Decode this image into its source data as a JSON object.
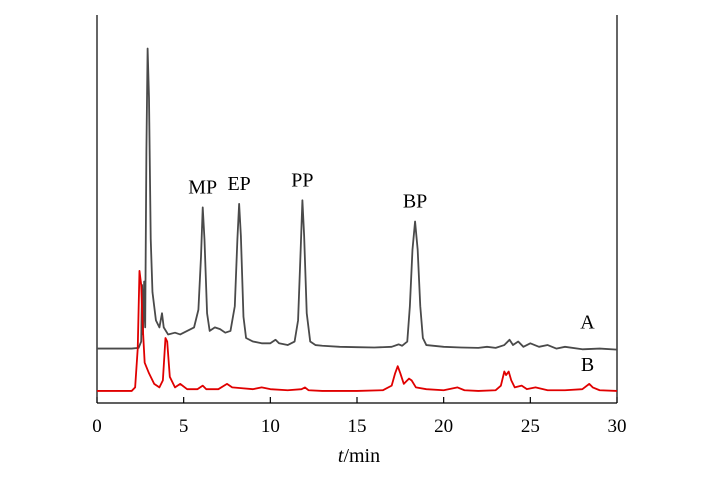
{
  "chart_data": {
    "type": "line",
    "title": "",
    "xlabel": {
      "italic": "t",
      "rest": "/min"
    },
    "ylabel": "",
    "xlim": [
      0,
      30
    ],
    "xticks": [
      0,
      5,
      10,
      15,
      20,
      25,
      30
    ],
    "xtick_labels": [
      "0",
      "5",
      "10",
      "15",
      "20",
      "25",
      "30"
    ],
    "grid": false,
    "series": [
      {
        "name": "A",
        "color": "#4a4a4a",
        "baseline": 0.14,
        "points": [
          [
            0,
            0.14
          ],
          [
            2.0,
            0.14
          ],
          [
            2.4,
            0.142
          ],
          [
            2.55,
            0.16
          ],
          [
            2.6,
            0.32
          ],
          [
            2.65,
            0.18
          ],
          [
            2.72,
            0.33
          ],
          [
            2.78,
            0.2
          ],
          [
            2.85,
            0.7
          ],
          [
            2.92,
            0.99
          ],
          [
            3.0,
            0.85
          ],
          [
            3.1,
            0.45
          ],
          [
            3.2,
            0.3
          ],
          [
            3.3,
            0.26
          ],
          [
            3.4,
            0.22
          ],
          [
            3.6,
            0.2
          ],
          [
            3.75,
            0.24
          ],
          [
            3.85,
            0.2
          ],
          [
            4.1,
            0.18
          ],
          [
            4.5,
            0.185
          ],
          [
            4.8,
            0.18
          ],
          [
            5.2,
            0.19
          ],
          [
            5.6,
            0.2
          ],
          [
            5.85,
            0.25
          ],
          [
            6.0,
            0.4
          ],
          [
            6.1,
            0.54
          ],
          [
            6.2,
            0.45
          ],
          [
            6.35,
            0.24
          ],
          [
            6.5,
            0.19
          ],
          [
            6.8,
            0.2
          ],
          [
            7.1,
            0.195
          ],
          [
            7.4,
            0.185
          ],
          [
            7.7,
            0.19
          ],
          [
            7.95,
            0.26
          ],
          [
            8.1,
            0.45
          ],
          [
            8.2,
            0.55
          ],
          [
            8.3,
            0.46
          ],
          [
            8.45,
            0.23
          ],
          [
            8.6,
            0.17
          ],
          [
            9.0,
            0.16
          ],
          [
            9.5,
            0.155
          ],
          [
            10.0,
            0.155
          ],
          [
            10.3,
            0.165
          ],
          [
            10.5,
            0.155
          ],
          [
            11.0,
            0.15
          ],
          [
            11.4,
            0.16
          ],
          [
            11.6,
            0.22
          ],
          [
            11.75,
            0.42
          ],
          [
            11.85,
            0.56
          ],
          [
            11.95,
            0.46
          ],
          [
            12.1,
            0.24
          ],
          [
            12.3,
            0.16
          ],
          [
            12.6,
            0.15
          ],
          [
            13.0,
            0.148
          ],
          [
            14.0,
            0.145
          ],
          [
            15.0,
            0.144
          ],
          [
            16.0,
            0.143
          ],
          [
            17.0,
            0.145
          ],
          [
            17.4,
            0.152
          ],
          [
            17.6,
            0.148
          ],
          [
            17.9,
            0.16
          ],
          [
            18.05,
            0.26
          ],
          [
            18.2,
            0.42
          ],
          [
            18.35,
            0.5
          ],
          [
            18.5,
            0.42
          ],
          [
            18.65,
            0.26
          ],
          [
            18.8,
            0.17
          ],
          [
            19.0,
            0.15
          ],
          [
            20.0,
            0.145
          ],
          [
            21.0,
            0.143
          ],
          [
            22.0,
            0.142
          ],
          [
            22.5,
            0.145
          ],
          [
            23.0,
            0.142
          ],
          [
            23.5,
            0.15
          ],
          [
            23.8,
            0.165
          ],
          [
            24.0,
            0.15
          ],
          [
            24.3,
            0.16
          ],
          [
            24.6,
            0.145
          ],
          [
            25.0,
            0.155
          ],
          [
            25.5,
            0.145
          ],
          [
            26.0,
            0.15
          ],
          [
            26.5,
            0.14
          ],
          [
            27.0,
            0.145
          ],
          [
            28.0,
            0.138
          ],
          [
            29.0,
            0.14
          ],
          [
            30.0,
            0.137
          ]
        ]
      },
      {
        "name": "B",
        "color": "#e00000",
        "baseline": 0.02,
        "points": [
          [
            0,
            0.02
          ],
          [
            2.0,
            0.02
          ],
          [
            2.2,
            0.03
          ],
          [
            2.35,
            0.14
          ],
          [
            2.45,
            0.36
          ],
          [
            2.55,
            0.32
          ],
          [
            2.62,
            0.22
          ],
          [
            2.75,
            0.1
          ],
          [
            3.0,
            0.07
          ],
          [
            3.3,
            0.04
          ],
          [
            3.6,
            0.03
          ],
          [
            3.8,
            0.05
          ],
          [
            3.95,
            0.17
          ],
          [
            4.05,
            0.16
          ],
          [
            4.2,
            0.06
          ],
          [
            4.5,
            0.03
          ],
          [
            4.8,
            0.04
          ],
          [
            5.2,
            0.025
          ],
          [
            5.8,
            0.025
          ],
          [
            6.1,
            0.035
          ],
          [
            6.3,
            0.025
          ],
          [
            7.0,
            0.025
          ],
          [
            7.5,
            0.04
          ],
          [
            7.8,
            0.03
          ],
          [
            8.3,
            0.028
          ],
          [
            9.0,
            0.025
          ],
          [
            9.5,
            0.03
          ],
          [
            10.0,
            0.025
          ],
          [
            11.0,
            0.022
          ],
          [
            11.8,
            0.025
          ],
          [
            12.0,
            0.03
          ],
          [
            12.2,
            0.022
          ],
          [
            13.0,
            0.02
          ],
          [
            15.0,
            0.02
          ],
          [
            16.5,
            0.022
          ],
          [
            17.0,
            0.035
          ],
          [
            17.2,
            0.07
          ],
          [
            17.35,
            0.09
          ],
          [
            17.5,
            0.07
          ],
          [
            17.7,
            0.04
          ],
          [
            18.0,
            0.055
          ],
          [
            18.15,
            0.05
          ],
          [
            18.4,
            0.03
          ],
          [
            19.0,
            0.025
          ],
          [
            20.0,
            0.022
          ],
          [
            20.8,
            0.03
          ],
          [
            21.2,
            0.022
          ],
          [
            22.0,
            0.02
          ],
          [
            23.0,
            0.022
          ],
          [
            23.3,
            0.035
          ],
          [
            23.5,
            0.075
          ],
          [
            23.6,
            0.065
          ],
          [
            23.75,
            0.075
          ],
          [
            23.9,
            0.05
          ],
          [
            24.1,
            0.03
          ],
          [
            24.5,
            0.035
          ],
          [
            24.8,
            0.025
          ],
          [
            25.3,
            0.03
          ],
          [
            26.0,
            0.022
          ],
          [
            27.0,
            0.022
          ],
          [
            28.0,
            0.025
          ],
          [
            28.4,
            0.04
          ],
          [
            28.6,
            0.03
          ],
          [
            29.0,
            0.022
          ],
          [
            30.0,
            0.02
          ]
        ]
      }
    ],
    "annotations": [
      {
        "text": "MP",
        "x": 6.1,
        "y": 0.54
      },
      {
        "text": "EP",
        "x": 8.2,
        "y": 0.55
      },
      {
        "text": "PP",
        "x": 11.85,
        "y": 0.56
      },
      {
        "text": "BP",
        "x": 18.35,
        "y": 0.5
      }
    ],
    "trace_labels": [
      {
        "text": "A",
        "series": "A"
      },
      {
        "text": "B",
        "series": "B"
      }
    ]
  }
}
